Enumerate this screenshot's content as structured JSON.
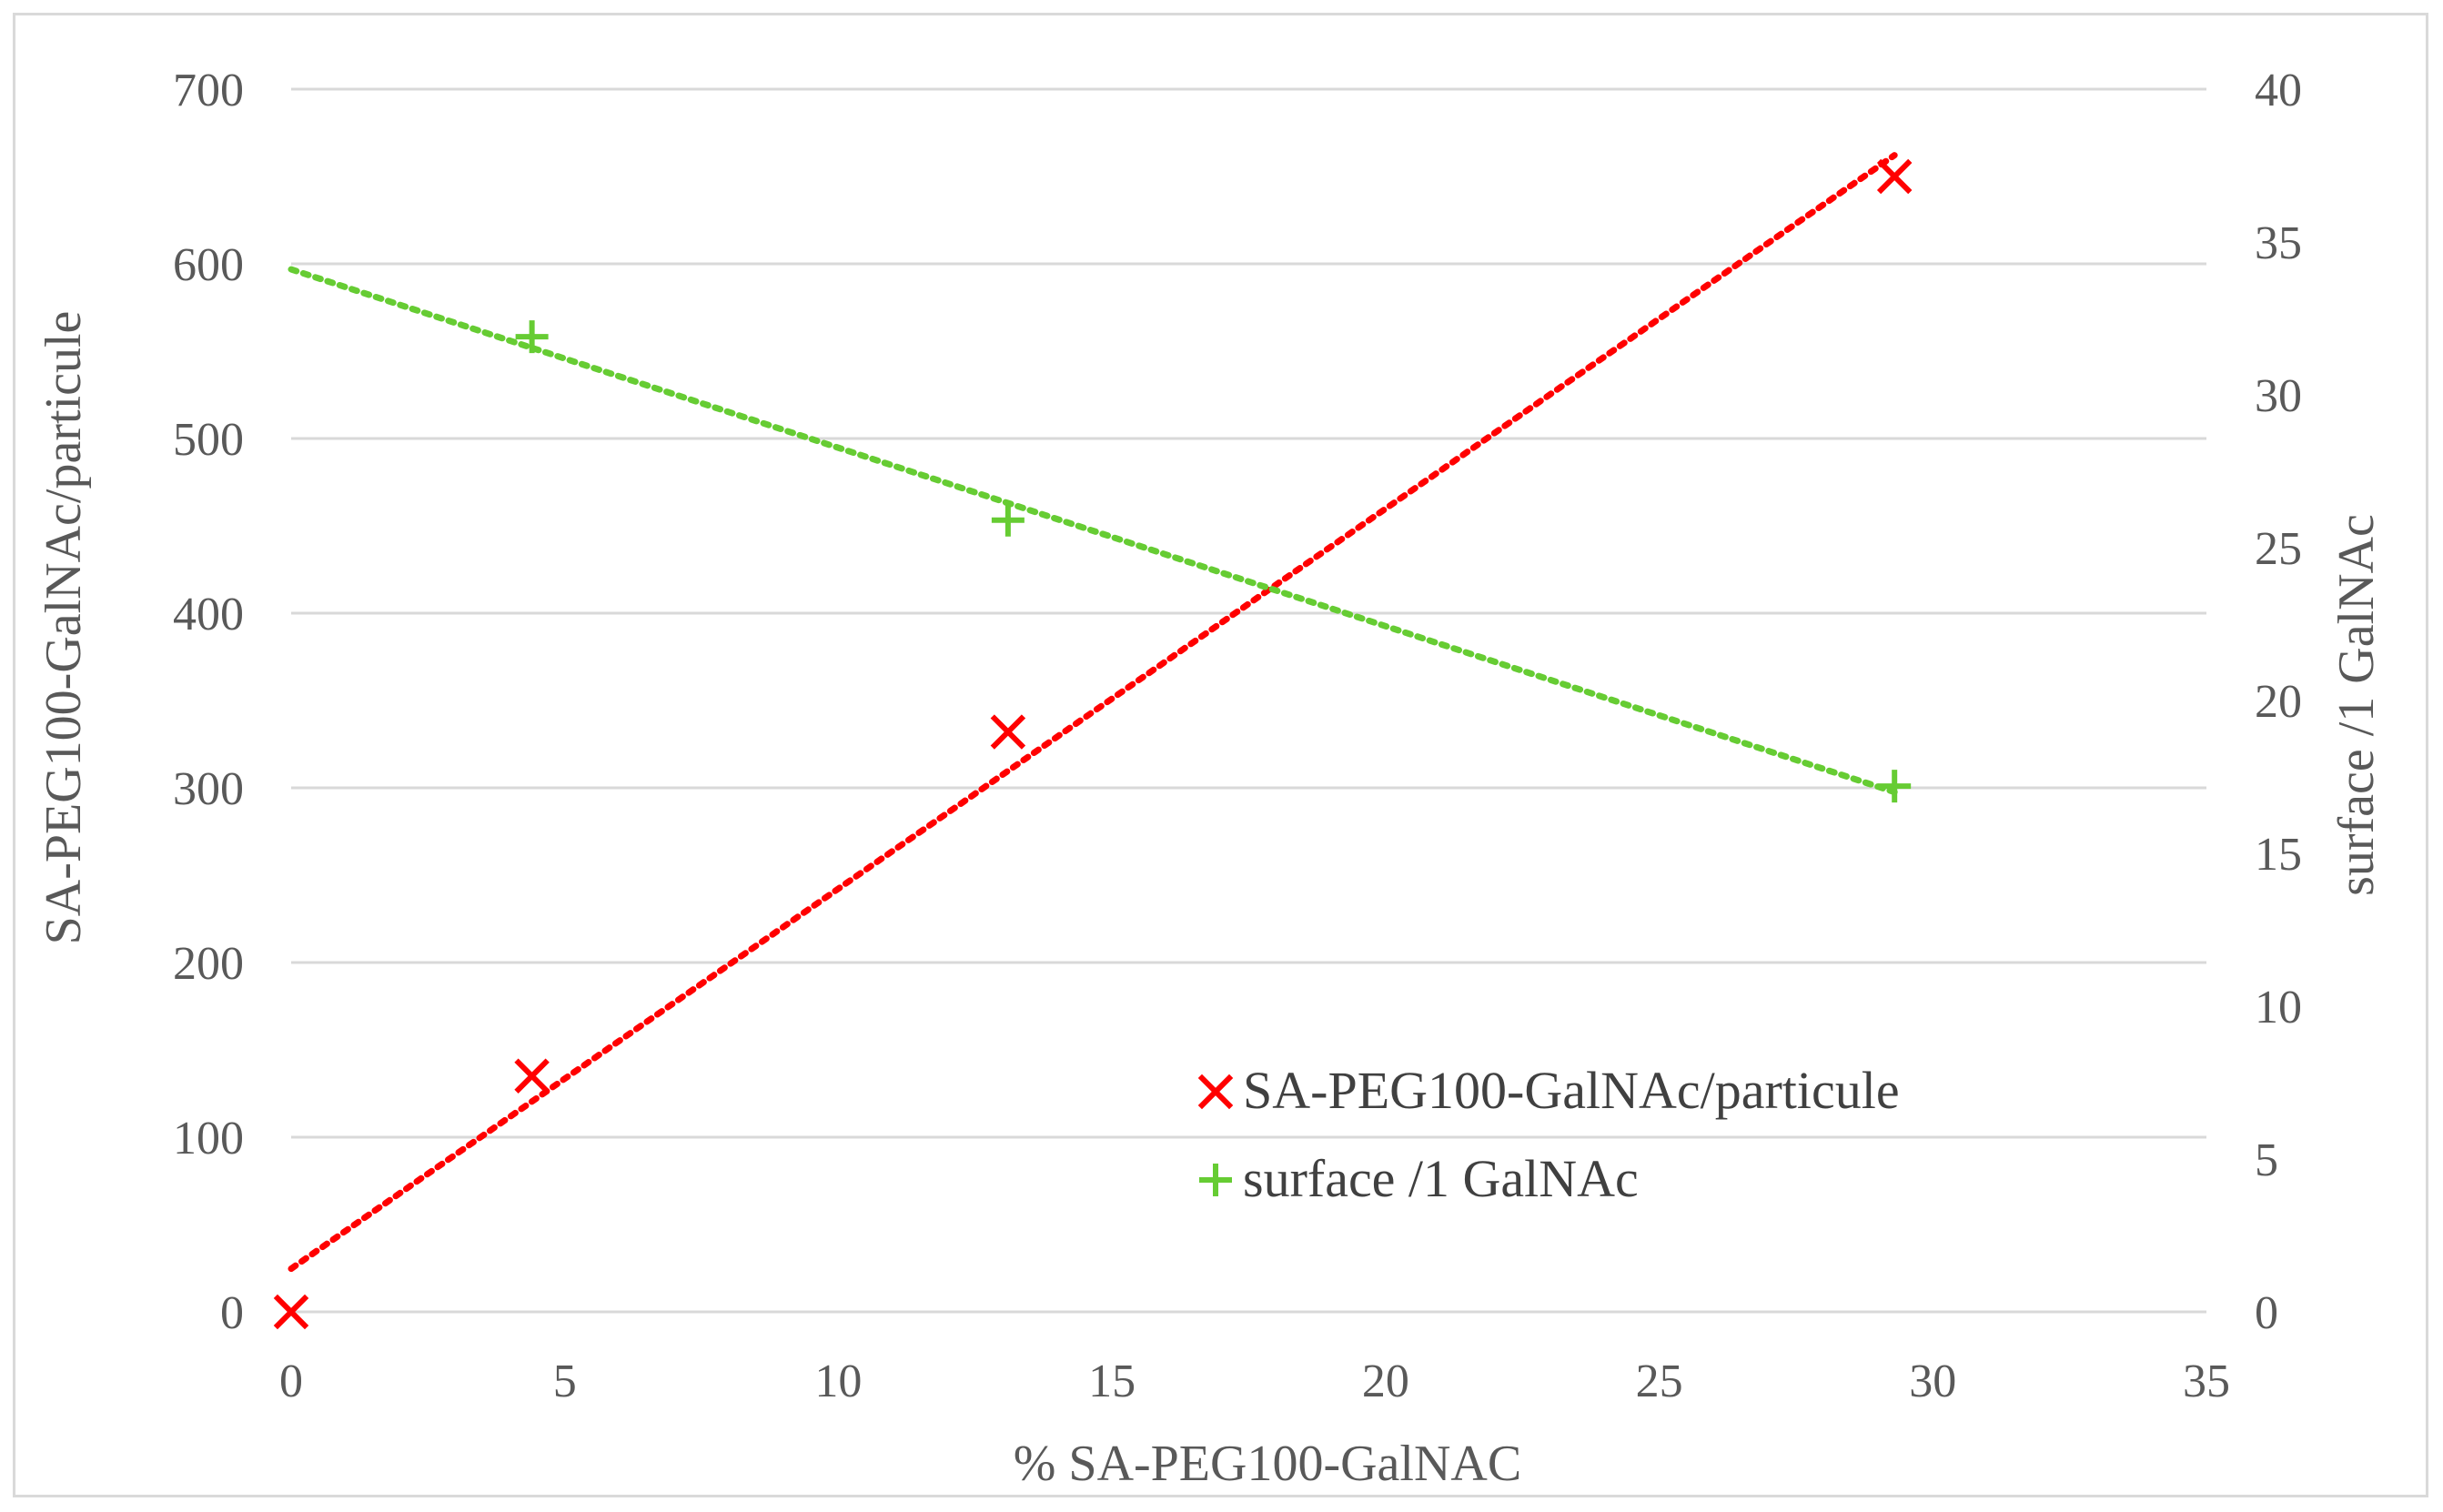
{
  "chart_data": {
    "type": "scatter",
    "xlabel": "% SA-PEG100-GalNAC",
    "ylabel": "SA-PEG100-GalNAc/particule",
    "y2label": "surface /1 GalNAc",
    "xlim": [
      0,
      35
    ],
    "ylim": [
      0,
      700
    ],
    "y2lim": [
      0,
      40
    ],
    "xticks": [
      "0",
      "5",
      "10",
      "15",
      "20",
      "25",
      "30",
      "35"
    ],
    "yticks": [
      "0",
      "100",
      "200",
      "300",
      "400",
      "500",
      "600",
      "700"
    ],
    "y2ticks": [
      "0",
      "5",
      "10",
      "15",
      "20",
      "25",
      "30",
      "35",
      "40"
    ],
    "grid": true,
    "legend_position": "lower-right",
    "series": [
      {
        "name": "SA-PEG100-GalNAc/particule",
        "axis": "left",
        "marker": "x",
        "color": "#ff0000",
        "x": [
          0,
          4.4,
          13.1,
          29.3
        ],
        "y": [
          0,
          135,
          332,
          650
        ],
        "trendline": "linear dotted"
      },
      {
        "name": "surface /1 GalNAc",
        "axis": "right",
        "marker": "plus",
        "color": "#66cc33",
        "x": [
          4.4,
          13.1,
          29.3
        ],
        "y": [
          31.9,
          25.9,
          17.2
        ],
        "trendline": "linear dotted"
      }
    ]
  }
}
